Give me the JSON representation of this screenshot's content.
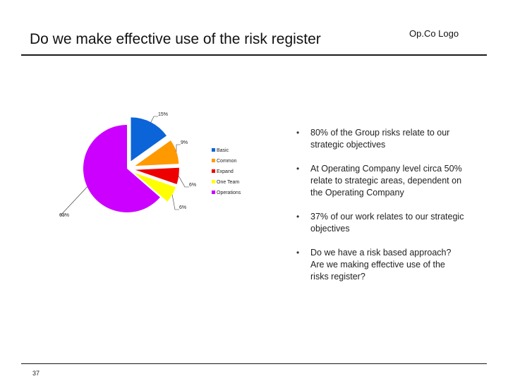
{
  "slide": {
    "title": "Do we make effective use of the risk register",
    "logo_text": "Op.Co Logo",
    "page_number": "37"
  },
  "bullets": [
    "80% of the Group risks relate to our strategic objectives",
    "At Operating Company level circa 50% relate to strategic areas, dependent on the Operating Company",
    "37% of our work relates to our strategic objectives",
    "Do we have a risk based approach? Are we making effective use of the risks register?"
  ],
  "chart_data": {
    "type": "pie",
    "exploded": true,
    "slices": [
      {
        "label": "Basic",
        "value": 15,
        "display": "15%",
        "color": "#0b64d8"
      },
      {
        "label": "Common",
        "value": 9,
        "display": "9%",
        "color": "#ff9900"
      },
      {
        "label": "Expand",
        "value": 6,
        "display": "6%",
        "color": "#ee0000"
      },
      {
        "label": "One Team",
        "value": 6,
        "display": "6%",
        "color": "#ffff00"
      },
      {
        "label": "Operations",
        "value": 63,
        "display": "63%",
        "color": "#cc00ff"
      }
    ],
    "legend_position": "right"
  }
}
